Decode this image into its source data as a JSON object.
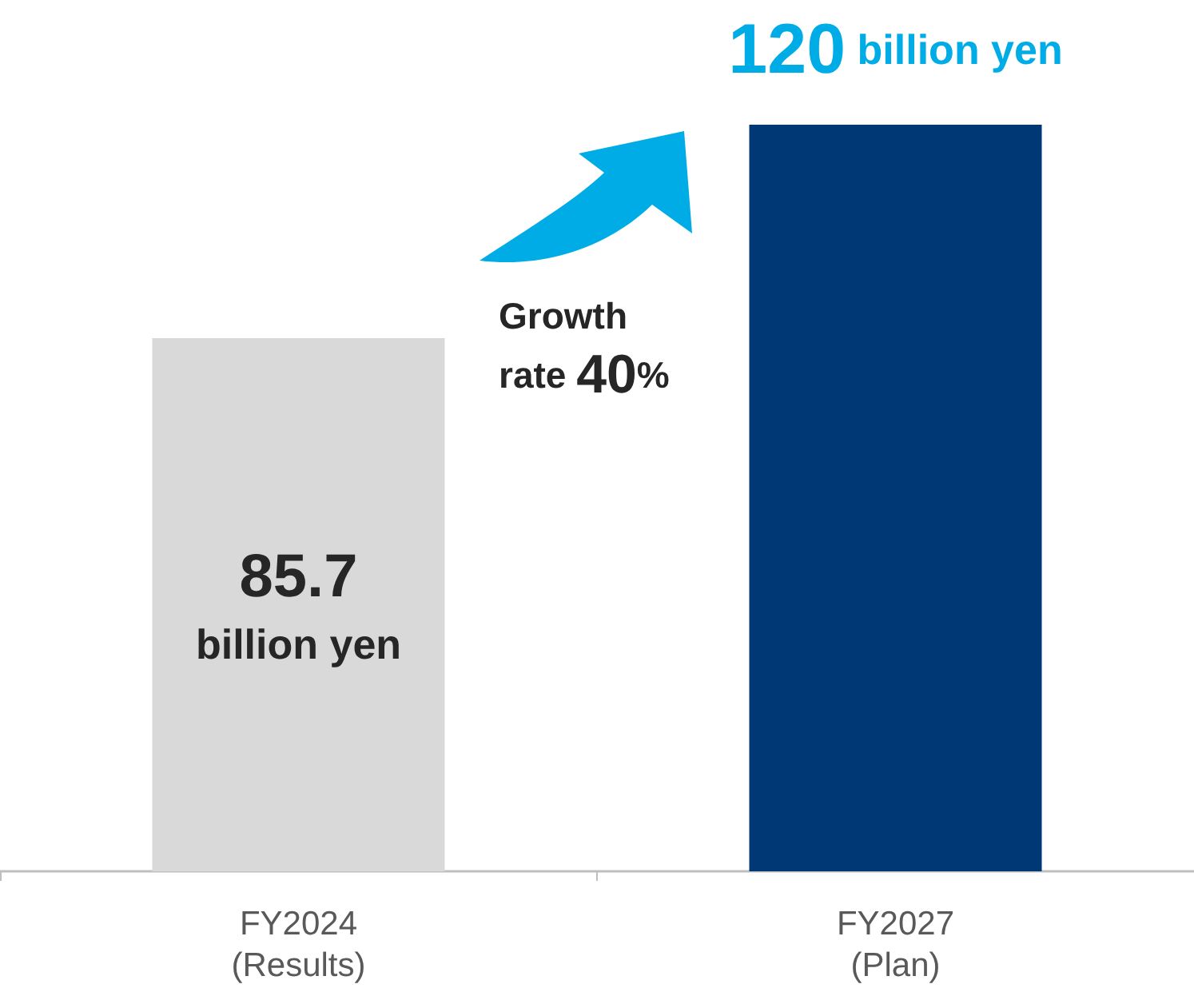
{
  "chart_data": {
    "type": "bar",
    "categories": [
      "FY2024\n(Results)",
      "FY2027\n(Plan)"
    ],
    "values": [
      85.7,
      120
    ],
    "colors": [
      "#d9d9d9",
      "#003876"
    ],
    "value_labels": [
      "85.7 billion yen",
      "120 billion yen"
    ],
    "ylim": [
      0,
      120
    ],
    "tick_labels": "x",
    "annotations": [
      "Growth\nrate 40%"
    ]
  }
}
